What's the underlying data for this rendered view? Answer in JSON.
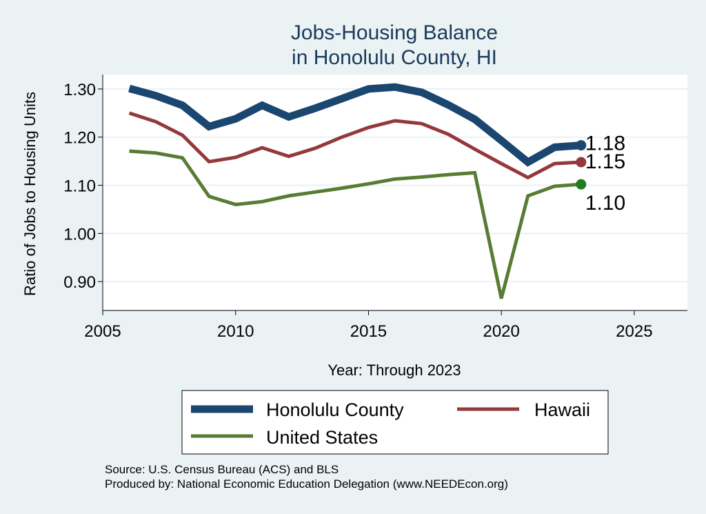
{
  "chart_data": {
    "type": "line",
    "title": [
      "Jobs-Housing Balance",
      "in Honolulu County, HI"
    ],
    "xlabel": "Year: Through 2023",
    "ylabel": "Ratio of Jobs to Housing Units",
    "xlim": [
      2005,
      2027
    ],
    "ylim": [
      0.84,
      1.33
    ],
    "xticks": [
      2005,
      2010,
      2015,
      2020,
      2025
    ],
    "yticks": [
      0.9,
      1.0,
      1.1,
      1.2,
      1.3
    ],
    "ytick_labels": [
      "0.90",
      "1.00",
      "1.10",
      "1.20",
      "1.30"
    ],
    "grid": true,
    "legend_position": "bottom",
    "x": [
      2006,
      2007,
      2008,
      2009,
      2010,
      2011,
      2012,
      2013,
      2014,
      2015,
      2016,
      2017,
      2018,
      2019,
      2020,
      2021,
      2022,
      2023
    ],
    "series": [
      {
        "name": "Honolulu County",
        "color": "#1a4670",
        "values": [
          1.301,
          1.286,
          1.266,
          1.222,
          1.238,
          1.266,
          1.242,
          1.26,
          1.28,
          1.3,
          1.304,
          1.293,
          1.267,
          1.237,
          1.193,
          1.148,
          1.179,
          1.183
        ],
        "end_label": "1.18"
      },
      {
        "name": "Hawaii",
        "color": "#94383c",
        "values": [
          1.25,
          1.232,
          1.204,
          1.149,
          1.158,
          1.178,
          1.16,
          1.177,
          1.2,
          1.22,
          1.234,
          1.228,
          1.206,
          1.175,
          1.145,
          1.116,
          1.145,
          1.148
        ],
        "end_label": "1.15"
      },
      {
        "name": "United States",
        "color": "#587c34",
        "values": [
          1.171,
          1.167,
          1.157,
          1.077,
          1.06,
          1.066,
          1.078,
          1.086,
          1.094,
          1.103,
          1.113,
          1.117,
          1.122,
          1.126,
          0.865,
          1.078,
          1.098,
          1.102
        ],
        "end_label": "1.10"
      }
    ],
    "end_markers": [
      "#1a4670",
      "#94383c",
      "#1f7d1f"
    ],
    "source_note": "Source: U.S. Census Bureau (ACS) and BLS",
    "producer_note": "Produced by: National Economic Education Delegation (www.NEEDEcon.org)"
  }
}
